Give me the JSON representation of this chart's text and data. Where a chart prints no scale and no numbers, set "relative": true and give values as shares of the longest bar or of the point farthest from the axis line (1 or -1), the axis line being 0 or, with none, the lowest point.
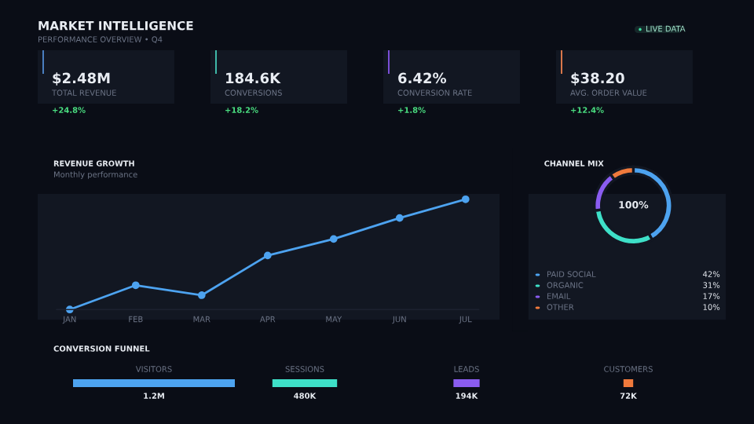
{
  "chart_data": [
    {
      "type": "other",
      "title": "MARKET INTELLIGENCE",
      "subtitle": "PERFORMANCE OVERVIEW • Q4",
      "colors": [
        "#4a7fc0",
        "#3fb8a8",
        "#7b4fd8",
        "#d9774a"
      ],
      "annotations": [
        "LIVE DATA",
        "$2.48M",
        "TOTAL REVENUE",
        "+24.8%",
        "184.6K",
        "CONVERSIONS",
        "+18.2%",
        "6.42%",
        "CONVERSION RATE",
        "+1.8%",
        "$38.20",
        "AVG. ORDER VALUE",
        "+12.4%"
      ]
    },
    {
      "type": "line",
      "title": "REVENUE GROWTH",
      "subtitle": "Monthly performance",
      "relative": true,
      "categories": [
        "JAN",
        "FEB",
        "MAR",
        "APR",
        "MAY",
        "JUN",
        "JUL"
      ],
      "series": [
        {
          "color": "#4da3f0",
          "values": [
            0,
            0.22,
            0.13,
            0.49,
            0.64,
            0.83,
            1
          ]
        }
      ],
      "marker": "circle",
      "line_style": "solid"
    },
    {
      "type": "donut",
      "title": "CHANNEL MIX",
      "categories": [
        "PAID SOCIAL",
        "ORGANIC",
        "EMAIL",
        "OTHER"
      ],
      "values": [
        42,
        31,
        17,
        10
      ],
      "colors": [
        "#4da3f0",
        "#3ee0c8",
        "#8a5cf0",
        "#f07a3c"
      ],
      "annotations": [
        "100%"
      ],
      "value_labels": [
        "42%",
        "31%",
        "17%",
        "10%"
      ],
      "legend": "bottom"
    },
    {
      "type": "other",
      "title": "CONVERSION FUNNEL",
      "categories": [
        "VISITORS",
        "SESSIONS",
        "LEADS",
        "CUSTOMERS"
      ],
      "values": [
        1200000,
        480000,
        194000,
        72000
      ],
      "value_labels": [
        "1.2M",
        "480K",
        "194K",
        "72K"
      ],
      "colors": [
        "#4da3f0",
        "#3ee0c8",
        "#8a5cf0",
        "#f07a3c"
      ]
    }
  ]
}
